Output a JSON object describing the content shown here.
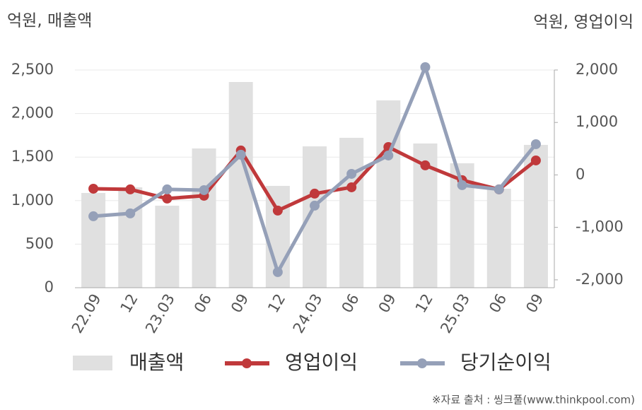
{
  "chart_data": {
    "type": "bar_line",
    "y_label": "억원, 매출액",
    "y2_label": "억원, 영업이익",
    "source": "※자료 출처 : 씽크풀(www.thinkpool.com)",
    "categories": [
      "22.09",
      "12",
      "23.03",
      "06",
      "09",
      "12",
      "24.03",
      "06",
      "09",
      "12",
      "25.03",
      "06",
      "09"
    ],
    "series": [
      {
        "name": "매출액",
        "type": "bar",
        "color": "#e0e0e0",
        "values": [
          1088,
          1153,
          942,
          1599,
          2362,
          1169,
          1623,
          1721,
          2151,
          1656,
          1429,
          1136,
          1640
        ]
      },
      {
        "name": "영업이익",
        "type": "line",
        "axis": "y2",
        "color": "#c0393b",
        "values": [
          -263,
          -276,
          -451,
          -397,
          465,
          -680,
          -357,
          -236,
          532,
          182,
          -101,
          -276,
          276
        ]
      },
      {
        "name": "당기순이익",
        "type": "line",
        "axis": "y2",
        "color": "#95a0b8",
        "values": [
          -788,
          -734,
          -276,
          -290,
          384,
          -1852,
          -586,
          20,
          370,
          2054,
          -195,
          -276,
          586
        ]
      }
    ],
    "ylim": [
      0,
      2500
    ],
    "yticks": [
      0,
      500,
      {
        "value": 1000,
        "label": "1,000"
      },
      {
        "value": 1500,
        "label": "1,500"
      },
      {
        "value": 2000,
        "label": "2,000"
      },
      {
        "value": 2500,
        "label": "2,500"
      }
    ],
    "y2lim": [
      -2150,
      2000
    ],
    "y2ticks": [
      {
        "value": -2000,
        "label": "-2,000"
      },
      {
        "value": -1000,
        "label": "-1,000"
      },
      0,
      {
        "value": 1000,
        "label": "1,000"
      },
      {
        "value": 2000,
        "label": "2,000"
      }
    ],
    "grid": true
  }
}
